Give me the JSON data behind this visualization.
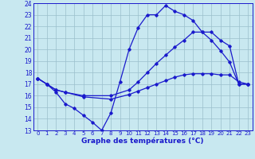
{
  "title": "Graphe des températures (°C)",
  "xlim": [
    -0.5,
    23.5
  ],
  "ylim": [
    13,
    24
  ],
  "yticks": [
    13,
    14,
    15,
    16,
    17,
    18,
    19,
    20,
    21,
    22,
    23,
    24
  ],
  "xticks": [
    0,
    1,
    2,
    3,
    4,
    5,
    6,
    7,
    8,
    9,
    10,
    11,
    12,
    13,
    14,
    15,
    16,
    17,
    18,
    19,
    20,
    21,
    22,
    23
  ],
  "bg_color": "#c8e8f0",
  "line_color": "#1a1acc",
  "grid_color": "#9bbfcc",
  "line1_x": [
    0,
    1,
    2,
    3,
    4,
    5,
    6,
    7,
    8,
    9,
    10,
    11,
    12,
    13,
    14,
    15,
    16,
    17,
    18,
    19,
    20,
    21,
    22,
    23
  ],
  "line1_y": [
    17.5,
    17.0,
    16.3,
    15.3,
    14.9,
    14.3,
    13.7,
    13.0,
    14.5,
    17.2,
    20.0,
    21.9,
    23.0,
    23.0,
    23.8,
    23.3,
    23.0,
    22.5,
    21.5,
    20.8,
    19.9,
    18.9,
    17.0,
    17.0
  ],
  "line2_x": [
    0,
    1,
    2,
    3,
    5,
    8,
    10,
    11,
    12,
    13,
    14,
    15,
    16,
    17,
    18,
    19,
    20,
    21,
    22,
    23
  ],
  "line2_y": [
    17.5,
    17.0,
    16.5,
    16.3,
    16.0,
    16.0,
    16.5,
    17.2,
    18.0,
    18.8,
    19.5,
    20.2,
    20.8,
    21.5,
    21.5,
    21.5,
    20.8,
    20.3,
    17.0,
    17.0
  ],
  "line3_x": [
    0,
    1,
    2,
    3,
    5,
    8,
    10,
    11,
    12,
    13,
    14,
    15,
    16,
    17,
    18,
    19,
    20,
    21,
    22,
    23
  ],
  "line3_y": [
    17.5,
    17.0,
    16.5,
    16.3,
    15.9,
    15.7,
    16.1,
    16.4,
    16.7,
    17.0,
    17.3,
    17.6,
    17.8,
    17.9,
    17.9,
    17.9,
    17.8,
    17.8,
    17.2,
    17.0
  ]
}
